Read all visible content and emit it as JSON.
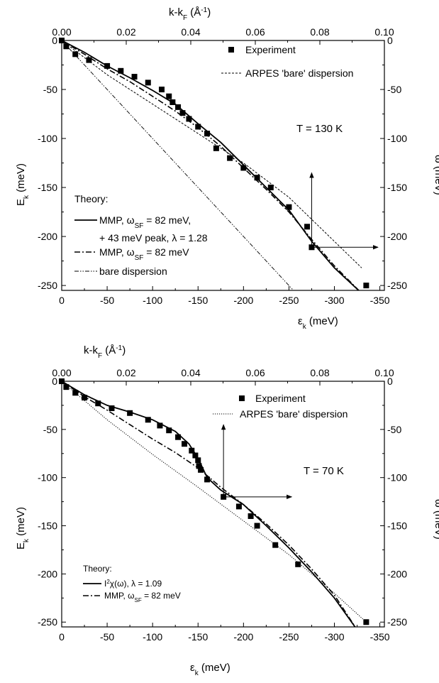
{
  "chart_data": [
    {
      "type": "line",
      "annotation": "T = 130 K",
      "x_bottom": {
        "label": "ε",
        "label_sub": "k",
        "label_suffix": " (meV)",
        "ticks": [
          0,
          -50,
          -100,
          -150,
          -200,
          -250,
          -300,
          -350
        ],
        "range": [
          0,
          -355
        ]
      },
      "x_top": {
        "label": "k-k",
        "label_sub": "F",
        "label_suffix": " (Å",
        "label_sup": "-1",
        "label_end": ")",
        "ticks": [
          "0.00",
          "0.02",
          "0.04",
          "0.06",
          "0.08",
          "0.10"
        ],
        "range": [
          0,
          0.1
        ]
      },
      "y_left": {
        "label": "E",
        "label_sub": "k",
        "label_suffix": " (meV)",
        "ticks": [
          0,
          -50,
          -100,
          -150,
          -200,
          -250
        ],
        "range": [
          0,
          -255
        ]
      },
      "y_right": {
        "label": "ω (meV)",
        "ticks": [
          0,
          -50,
          -100,
          -150,
          -200,
          -250
        ],
        "range": [
          0,
          -255
        ]
      },
      "legend_top": [
        {
          "label": "Experiment",
          "style": "square"
        },
        {
          "label": "ARPES 'bare' dispersion",
          "style": "dash"
        }
      ],
      "legend_theory": {
        "title": "Theory:",
        "items": [
          {
            "label": "MMP, ω",
            "sub": "SF",
            "suffix": " = 82 meV,",
            "style": "solid"
          },
          {
            "label": "+ 43 meV peak, λ = 1.28",
            "style": "none"
          },
          {
            "label": "MMP, ω",
            "sub": "SF",
            "suffix": " = 82 meV",
            "style": "dashdot"
          },
          {
            "label": "bare dispersion",
            "style": "dashdotdot"
          }
        ]
      },
      "series": [
        {
          "style": "square",
          "points": [
            [
              0,
              0
            ],
            [
              -5,
              -6
            ],
            [
              -15,
              -14
            ],
            [
              -30,
              -20
            ],
            [
              -50,
              -26
            ],
            [
              -65,
              -31
            ],
            [
              -80,
              -37
            ],
            [
              -95,
              -43
            ],
            [
              -110,
              -50
            ],
            [
              -118,
              -57
            ],
            [
              -122,
              -63
            ],
            [
              -128,
              -68
            ],
            [
              -133,
              -74
            ],
            [
              -140,
              -80
            ],
            [
              -150,
              -88
            ],
            [
              -160,
              -95
            ],
            [
              -170,
              -110
            ],
            [
              -185,
              -120
            ],
            [
              -200,
              -130
            ],
            [
              -215,
              -140
            ],
            [
              -230,
              -150
            ],
            [
              -250,
              -170
            ],
            [
              -270,
              -190
            ],
            [
              -275,
              -211
            ],
            [
              -335,
              -250
            ]
          ]
        },
        {
          "style": "dash",
          "points": [
            [
              0,
              0
            ],
            [
              -50,
              -35
            ],
            [
              -100,
              -65
            ],
            [
              -150,
              -95
            ],
            [
              -200,
              -125
            ],
            [
              -250,
              -160
            ],
            [
              -300,
              -205
            ],
            [
              -330,
              -232
            ]
          ]
        },
        {
          "style": "solid",
          "points": [
            [
              0,
              0
            ],
            [
              -25,
              -12
            ],
            [
              -50,
              -26
            ],
            [
              -75,
              -38
            ],
            [
              -100,
              -51
            ],
            [
              -125,
              -65
            ],
            [
              -150,
              -85
            ],
            [
              -175,
              -104
            ],
            [
              -200,
              -127
            ],
            [
              -225,
              -150
            ],
            [
              -250,
              -173
            ],
            [
              -275,
              -205
            ],
            [
              -300,
              -232
            ],
            [
              -330,
              -258
            ]
          ]
        },
        {
          "style": "dashdot",
          "points": [
            [
              0,
              0
            ],
            [
              -25,
              -14
            ],
            [
              -50,
              -29
            ],
            [
              -75,
              -42
            ],
            [
              -100,
              -57
            ],
            [
              -125,
              -72
            ],
            [
              -150,
              -89
            ],
            [
              -175,
              -108
            ],
            [
              -200,
              -130
            ],
            [
              -225,
              -152
            ],
            [
              -250,
              -175
            ],
            [
              -275,
              -203
            ],
            [
              -300,
              -230
            ],
            [
              -330,
              -258
            ]
          ]
        },
        {
          "style": "dashdotdot",
          "points": [
            [
              0,
              0
            ],
            [
              -255,
              -255
            ]
          ]
        }
      ],
      "arrows": [
        {
          "from": [
            -275,
            -211
          ],
          "to": [
            -275,
            -135
          ]
        },
        {
          "from": [
            -275,
            -211
          ],
          "to": [
            -348,
            -211
          ]
        }
      ]
    },
    {
      "type": "line",
      "annotation": "T = 70 K",
      "x_bottom": {
        "label": "ε",
        "label_sub": "k",
        "label_suffix": " (meV)",
        "ticks": [
          0,
          -50,
          -100,
          -150,
          -200,
          -250,
          -300,
          -350
        ],
        "range": [
          0,
          -355
        ]
      },
      "x_top": {
        "label": "k-k",
        "label_sub": "F",
        "label_suffix": " (Å",
        "label_sup": "-1",
        "label_end": ")",
        "ticks": [
          "0.00",
          "0.02",
          "0.04",
          "0.06",
          "0.08",
          "0.10"
        ],
        "range": [
          0,
          0.1
        ]
      },
      "y_left": {
        "label": "E",
        "label_sub": "k",
        "label_suffix": " (meV)",
        "ticks": [
          0,
          -50,
          -100,
          -150,
          -200,
          -250
        ],
        "range": [
          0,
          -255
        ]
      },
      "y_right": {
        "label": "ω (meV)",
        "ticks": [
          0,
          -50,
          -100,
          -150,
          -200,
          -250
        ],
        "range": [
          0,
          -255
        ]
      },
      "legend_top": [
        {
          "label": "Experiment",
          "style": "square"
        },
        {
          "label": "ARPES 'bare' dispersion",
          "style": "dot"
        }
      ],
      "legend_theory": {
        "title": "Theory:",
        "items": [
          {
            "label": "I",
            "sup": "2",
            "suffix": "χ(ω), λ = 1.09",
            "style": "solid"
          },
          {
            "label": "MMP, ω",
            "sub": "SF",
            "suffix": " = 82 meV",
            "style": "dashdot"
          }
        ]
      },
      "series": [
        {
          "style": "square",
          "points": [
            [
              0,
              0
            ],
            [
              -5,
              -6
            ],
            [
              -15,
              -12
            ],
            [
              -25,
              -17
            ],
            [
              -40,
              -23
            ],
            [
              -55,
              -28
            ],
            [
              -75,
              -33
            ],
            [
              -95,
              -40
            ],
            [
              -108,
              -46
            ],
            [
              -118,
              -51
            ],
            [
              -128,
              -58
            ],
            [
              -135,
              -65
            ],
            [
              -143,
              -72
            ],
            [
              -147,
              -77
            ],
            [
              -150,
              -82
            ],
            [
              -151,
              -88
            ],
            [
              -153,
              -92
            ],
            [
              -160,
              -102
            ],
            [
              -178,
              -120
            ],
            [
              -195,
              -130
            ],
            [
              -208,
              -140
            ],
            [
              -215,
              -150
            ],
            [
              -235,
              -170
            ],
            [
              -260,
              -190
            ],
            [
              -335,
              -250
            ]
          ]
        },
        {
          "style": "dot",
          "points": [
            [
              0,
              0
            ],
            [
              -50,
              -40
            ],
            [
              -100,
              -76
            ],
            [
              -150,
              -110
            ],
            [
              -200,
              -145
            ],
            [
              -250,
              -180
            ],
            [
              -300,
              -220
            ],
            [
              -335,
              -250
            ]
          ]
        },
        {
          "style": "solid",
          "points": [
            [
              0,
              0
            ],
            [
              -25,
              -14
            ],
            [
              -50,
              -25
            ],
            [
              -75,
              -32
            ],
            [
              -100,
              -40
            ],
            [
              -125,
              -52
            ],
            [
              -140,
              -65
            ],
            [
              -150,
              -80
            ],
            [
              -160,
              -100
            ],
            [
              -175,
              -113
            ],
            [
              -200,
              -128
            ],
            [
              -225,
              -150
            ],
            [
              -250,
              -173
            ],
            [
              -275,
              -198
            ],
            [
              -300,
              -225
            ],
            [
              -325,
              -258
            ]
          ]
        },
        {
          "style": "dashdot",
          "points": [
            [
              0,
              0
            ],
            [
              -25,
              -16
            ],
            [
              -50,
              -30
            ],
            [
              -75,
              -45
            ],
            [
              -100,
              -60
            ],
            [
              -125,
              -74
            ],
            [
              -150,
              -90
            ],
            [
              -175,
              -110
            ],
            [
              -200,
              -128
            ],
            [
              -225,
              -148
            ],
            [
              -250,
              -170
            ],
            [
              -275,
              -195
            ],
            [
              -300,
              -222
            ],
            [
              -325,
              -258
            ]
          ]
        }
      ],
      "arrows": [
        {
          "from": [
            -178,
            -120
          ],
          "to": [
            -178,
            -45
          ]
        },
        {
          "from": [
            -178,
            -120
          ],
          "to": [
            -253,
            -120
          ]
        }
      ]
    }
  ]
}
